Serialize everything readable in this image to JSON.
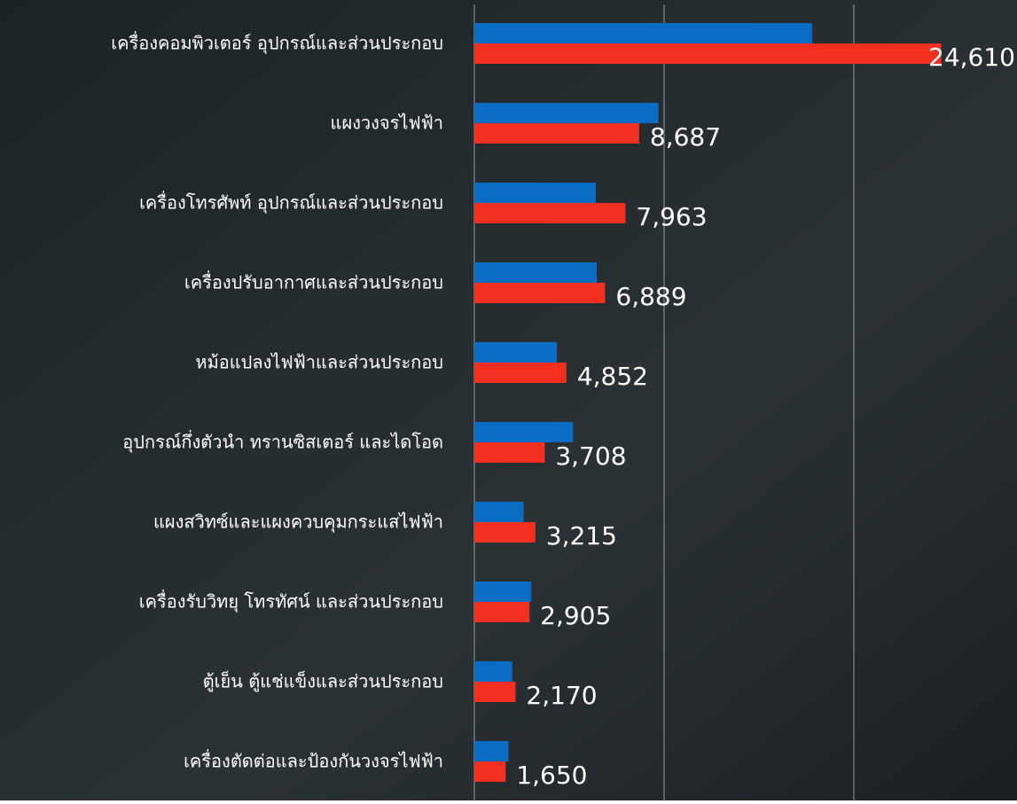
{
  "chart_data": {
    "type": "bar",
    "orientation": "horizontal",
    "categories": [
      "เครื่องคอมพิวเตอร์ อุปกรณ์และส่วนประกอบ",
      "แผงวงจรไฟฟ้า",
      "เครื่องโทรศัพท์ อุปกรณ์และส่วนประกอบ",
      "เครื่องปรับอากาศและส่วนประกอบ",
      "หม้อแปลงไฟฟ้าและส่วนประกอบ",
      "อุปกรณ์กึ่งตัวนำ ทรานซิสเตอร์ และไดโอด",
      "แผงสวิทซ์และแผงควบคุมกระแสไฟฟ้า",
      "เครื่องรับวิทยุ โทรทัศน์ และส่วนประกอบ",
      "ตู้เย็น ตู้แช่แข็งและส่วนประกอบ",
      "เครื่องตัดต่อและป้องกันวงจรไฟฟ้า"
    ],
    "series": [
      {
        "color": "#0b6cc4",
        "values": [
          17800,
          9700,
          6400,
          6450,
          4350,
          5200,
          2600,
          3000,
          2000,
          1800
        ]
      },
      {
        "color": "#f32f1f",
        "values": [
          24610,
          8687,
          7963,
          6889,
          4852,
          3708,
          3215,
          2905,
          2170,
          1650
        ],
        "value_labels": [
          "24,610",
          "8,687",
          "7,963",
          "6,889",
          "4,852",
          "3,708",
          "3,215",
          "2,905",
          "2,170",
          "1,650"
        ]
      }
    ],
    "xlim": [
      0,
      28600
    ],
    "xticks": [
      0,
      10000,
      20000
    ],
    "grid": true
  }
}
